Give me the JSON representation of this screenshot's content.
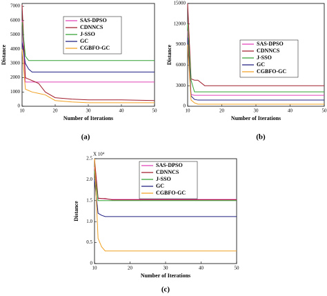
{
  "chart_data": [
    {
      "type": "line",
      "caption": "(a)",
      "x_label": "Number of Iterations",
      "y_label": "Distance",
      "x": [
        10,
        11,
        12,
        13,
        15,
        17,
        20,
        25,
        30,
        40,
        50
      ],
      "xlim": [
        10,
        50
      ],
      "xticks": [
        10,
        20,
        30,
        40,
        50
      ],
      "ylim": [
        0,
        7200
      ],
      "yticks": [
        0,
        1000,
        2000,
        3000,
        4000,
        5000,
        6000,
        7000
      ],
      "series": [
        {
          "name": "SAS-DPSO",
          "color": "#e040b8",
          "values": [
            6000,
            1700,
            1700,
            1700,
            1700,
            1700,
            1700,
            1700,
            1700,
            1700,
            1700
          ]
        },
        {
          "name": "CDNNCS",
          "color": "#a01c2c",
          "values": [
            7100,
            2000,
            1900,
            1800,
            1600,
            1000,
            600,
            500,
            450,
            450,
            400
          ]
        },
        {
          "name": "J-SSO",
          "color": "#30a030",
          "values": [
            5900,
            3500,
            3200,
            3200,
            3200,
            3200,
            3200,
            3200,
            3200,
            3200,
            3200
          ]
        },
        {
          "name": "GC",
          "color": "#1c1c80",
          "values": [
            4500,
            3000,
            2600,
            2400,
            2400,
            2400,
            2400,
            2400,
            2400,
            2400,
            2400
          ]
        },
        {
          "name": "CGBFO-GC",
          "color": "#f0a020",
          "values": [
            4000,
            1200,
            1100,
            1000,
            900,
            800,
            400,
            300,
            250,
            250,
            250
          ]
        }
      ]
    },
    {
      "type": "line",
      "caption": "(b)",
      "x_label": "Number of Iterations",
      "y_label": "Distance",
      "x": [
        10,
        11,
        12,
        13,
        15,
        17,
        20,
        25,
        30,
        40,
        50
      ],
      "xlim": [
        10,
        50
      ],
      "xticks": [
        10,
        20,
        30,
        40,
        50
      ],
      "ylim": [
        0,
        15000
      ],
      "yticks": [
        0,
        3000,
        6000,
        9000,
        12000,
        15000
      ],
      "series": [
        {
          "name": "SAS-DPSO",
          "color": "#e040b8",
          "values": [
            11000,
            1700,
            1600,
            1600,
            1600,
            1600,
            1600,
            1600,
            1600,
            1600,
            1600
          ]
        },
        {
          "name": "CDNNCS",
          "color": "#a01c2c",
          "values": [
            15000,
            4000,
            3800,
            3800,
            3000,
            3000,
            3000,
            3000,
            3000,
            3000,
            3000
          ]
        },
        {
          "name": "J-SSO",
          "color": "#30a030",
          "values": [
            12000,
            3800,
            2100,
            2100,
            2100,
            2100,
            2100,
            2100,
            2100,
            2100,
            2100
          ]
        },
        {
          "name": "GC",
          "color": "#1c1c80",
          "values": [
            10000,
            1500,
            1000,
            900,
            900,
            900,
            900,
            900,
            900,
            900,
            900
          ]
        },
        {
          "name": "CGBFO-GC",
          "color": "#f0a020",
          "values": [
            9000,
            900,
            500,
            300,
            300,
            300,
            300,
            300,
            300,
            300,
            300
          ]
        }
      ]
    },
    {
      "type": "line",
      "caption": "(c)",
      "x_label": "Number of Iterations",
      "y_label": "Distance",
      "y_multiplier": "X 10⁴",
      "x": [
        10,
        11,
        12,
        13,
        15,
        17,
        20,
        25,
        30,
        40,
        50
      ],
      "xlim": [
        10,
        50
      ],
      "xticks": [
        10,
        20,
        30,
        40,
        50
      ],
      "ylim": [
        0,
        2.5
      ],
      "yticks": [
        0,
        0.5,
        {
          "value": 1,
          "label": "1.0"
        },
        1.5,
        {
          "value": 2,
          "label": "2.0"
        },
        2.5
      ],
      "series": [
        {
          "name": "SAS-DPSO",
          "color": "#e040b8",
          "values": [
            2.3,
            1.55,
            1.55,
            1.54,
            1.53,
            1.53,
            1.53,
            1.53,
            1.53,
            1.53,
            1.53
          ]
        },
        {
          "name": "CDNNCS",
          "color": "#a01c2c",
          "values": [
            2.5,
            1.56,
            1.55,
            1.55,
            1.52,
            1.52,
            1.52,
            1.52,
            1.52,
            1.52,
            1.52
          ]
        },
        {
          "name": "J-SSO",
          "color": "#30a030",
          "values": [
            2.2,
            1.5,
            1.5,
            1.5,
            1.5,
            1.5,
            1.5,
            1.5,
            1.5,
            1.5,
            1.5
          ]
        },
        {
          "name": "GC",
          "color": "#1c1c80",
          "values": [
            2.0,
            1.2,
            1.15,
            1.12,
            1.12,
            1.12,
            1.12,
            1.12,
            1.12,
            1.12,
            1.12
          ]
        },
        {
          "name": "CGBFO-GC",
          "color": "#f0a020",
          "values": [
            2.5,
            0.6,
            0.4,
            0.3,
            0.3,
            0.3,
            0.3,
            0.3,
            0.3,
            0.3,
            0.3
          ]
        }
      ]
    }
  ]
}
